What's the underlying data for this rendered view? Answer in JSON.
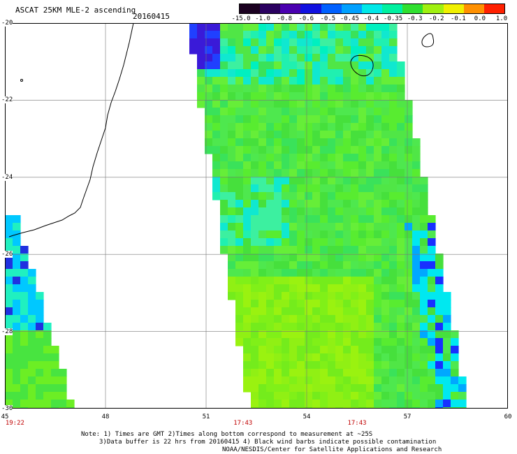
{
  "header": {
    "title": "ASCAT 25KM MLE-2 ascending",
    "date": "20160415"
  },
  "colorbar": {
    "labels": [
      "-15.0",
      "-1.0",
      "-0.8",
      "-0.6",
      "-0.5",
      "-0.45",
      "-0.4",
      "-0.35",
      "-0.3",
      "-0.2",
      "-0.1",
      "0.0",
      "1.0"
    ],
    "colors": [
      "#1a0020",
      "#2a0060",
      "#4a00b0",
      "#1010e0",
      "#0060ff",
      "#00a0ff",
      "#00e8e8",
      "#00f0a0",
      "#30e030",
      "#a0f010",
      "#f0f000",
      "#ff9000",
      "#ff2000"
    ]
  },
  "map": {
    "lat_range": [
      -30,
      -20
    ],
    "lon_range": [
      45,
      60
    ],
    "y_labels": [
      "-20",
      "-22",
      "-24",
      "-26",
      "-28",
      "-30"
    ],
    "x_labels": [
      "45",
      "48",
      "51",
      "54",
      "57",
      "60"
    ],
    "pass_times": [
      {
        "label": "19:22",
        "lon": 45.3
      },
      {
        "label": "17:43",
        "lon": 52.1
      },
      {
        "label": "17:43",
        "lon": 55.5
      }
    ]
  },
  "notes": {
    "line1": "Note: 1) Times are GMT 2)Times along bottom correspond to measurement at ~25S",
    "line2": "3)Data buffer is 22 hrs from 20160415 4) Black wind barbs indicate possible contamination",
    "line3": "NOAA/NESDIS/Center for Satellite Applications and Research"
  }
}
